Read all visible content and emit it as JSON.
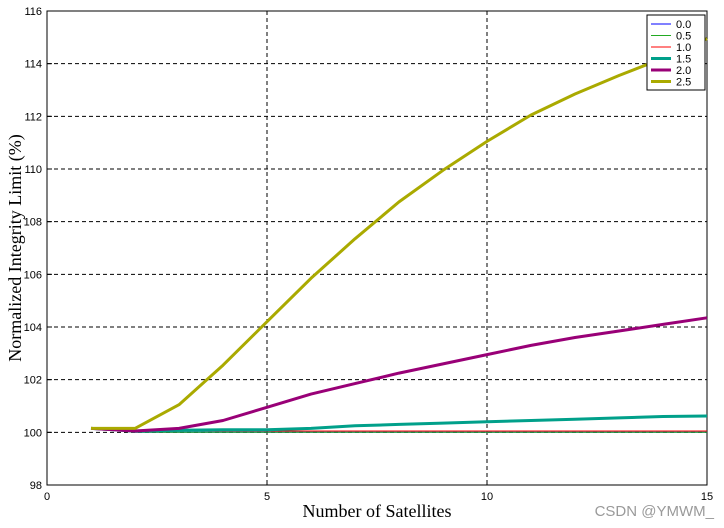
{
  "chart_data": {
    "type": "line",
    "title": "",
    "xlabel": "Number of Satellites",
    "ylabel": "Normalized Integrity Limit (%)",
    "xlim": [
      0,
      15
    ],
    "ylim": [
      98,
      116
    ],
    "xticks": [
      0,
      5,
      10,
      15
    ],
    "yticks": [
      98,
      100,
      102,
      104,
      106,
      108,
      110,
      112,
      114,
      116
    ],
    "grid": true,
    "legend_position": "top-right",
    "series": [
      {
        "name": "0.0",
        "color": "#0000ff",
        "width": 1,
        "x": [
          1,
          2,
          3,
          4,
          5,
          6,
          7,
          8,
          9,
          10,
          11,
          12,
          13,
          14,
          15
        ],
        "y": [
          100.15,
          100.0,
          100.0,
          100.0,
          100.0,
          100.0,
          100.0,
          100.0,
          100.0,
          100.0,
          100.0,
          100.0,
          100.0,
          100.0,
          100.0
        ]
      },
      {
        "name": "0.5",
        "color": "#22aa22",
        "width": 1,
        "x": [
          1,
          2,
          3,
          4,
          5,
          6,
          7,
          8,
          9,
          10,
          11,
          12,
          13,
          14,
          15
        ],
        "y": [
          100.15,
          100.0,
          100.0,
          100.0,
          100.0,
          100.0,
          100.0,
          100.0,
          100.0,
          100.0,
          100.0,
          100.0,
          100.0,
          100.0,
          100.0
        ]
      },
      {
        "name": "1.0",
        "color": "#ff0000",
        "width": 1,
        "x": [
          1,
          2,
          3,
          4,
          5,
          6,
          7,
          8,
          9,
          10,
          11,
          12,
          13,
          14,
          15
        ],
        "y": [
          100.15,
          100.05,
          100.05,
          100.05,
          100.05,
          100.05,
          100.05,
          100.05,
          100.05,
          100.05,
          100.05,
          100.05,
          100.05,
          100.05,
          100.05
        ]
      },
      {
        "name": "1.5",
        "color": "#00a08a",
        "width": 3,
        "x": [
          1,
          2,
          3,
          4,
          5,
          6,
          7,
          8,
          9,
          10,
          11,
          12,
          13,
          14,
          15
        ],
        "y": [
          100.15,
          100.05,
          100.08,
          100.1,
          100.1,
          100.15,
          100.25,
          100.3,
          100.35,
          100.4,
          100.45,
          100.5,
          100.55,
          100.6,
          100.62
        ]
      },
      {
        "name": "2.0",
        "color": "#990077",
        "width": 3,
        "x": [
          1,
          2,
          3,
          4,
          5,
          6,
          7,
          8,
          9,
          10,
          11,
          12,
          13,
          14,
          15
        ],
        "y": [
          100.15,
          100.05,
          100.15,
          100.45,
          100.95,
          101.45,
          101.85,
          102.25,
          102.6,
          102.95,
          103.3,
          103.6,
          103.85,
          104.1,
          104.35
        ]
      },
      {
        "name": "2.5",
        "color": "#aaaa00",
        "width": 3,
        "x": [
          1,
          2,
          3,
          4,
          5,
          6,
          7,
          8,
          9,
          10,
          11,
          12,
          13,
          14,
          15
        ],
        "y": [
          100.15,
          100.15,
          101.05,
          102.55,
          104.2,
          105.85,
          107.35,
          108.75,
          109.95,
          111.05,
          112.05,
          112.85,
          113.55,
          114.2,
          114.95
        ]
      }
    ]
  }
}
